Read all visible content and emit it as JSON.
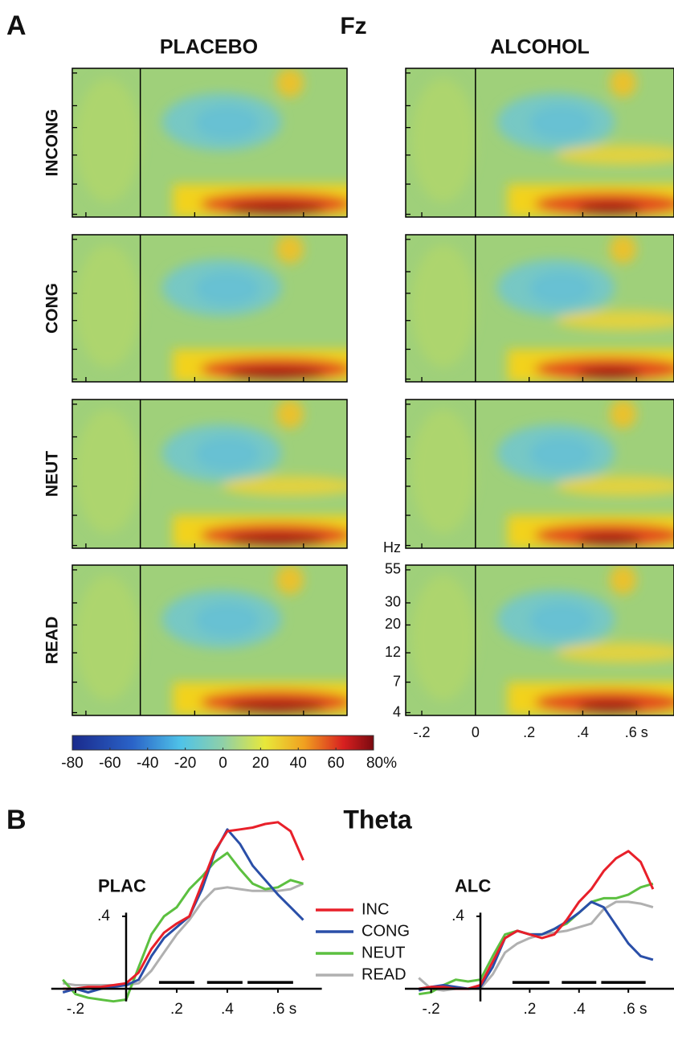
{
  "panel_a": {
    "label": "A",
    "title": "Fz",
    "columns": [
      "PLACEBO",
      "ALCOHOL"
    ],
    "rows": [
      "INCONG",
      "CONG",
      "NEUT",
      "READ"
    ],
    "freq_unit": "Hz",
    "freq_ticks": [
      55,
      30,
      20,
      12,
      7,
      4
    ],
    "freq_lim": [
      3.8,
      60
    ],
    "log_freq": true,
    "time_ticks": [
      {
        "value": -0.2,
        "label": "-.2"
      },
      0,
      {
        "value": 0.2,
        "label": ".2"
      },
      {
        "value": 0.4,
        "label": ".4"
      },
      {
        "value": 0.6,
        "label": ".6 s"
      }
    ],
    "time_lims": [
      [
        -0.25,
        0.76
      ],
      [
        -0.26,
        0.74
      ]
    ],
    "colorbar": {
      "lim": [
        -80,
        80
      ],
      "ticks": [
        -80,
        -60,
        -40,
        -20,
        0,
        20,
        40,
        60,
        {
          "value": 80,
          "label": "80%"
        }
      ]
    }
  },
  "panel_b": {
    "label": "B",
    "title": "Theta"
  },
  "chart_data": [
    {
      "type": "line",
      "title": "PLAC",
      "x": [
        -0.25,
        -0.2,
        -0.15,
        -0.1,
        -0.05,
        0,
        0.05,
        0.1,
        0.15,
        0.2,
        0.25,
        0.3,
        0.35,
        0.4,
        0.45,
        0.5,
        0.55,
        0.6,
        0.65,
        0.7
      ],
      "series": [
        {
          "name": "INC",
          "color": "#e8202a",
          "values": [
            0,
            0,
            0.01,
            0.01,
            0.02,
            0.03,
            0.09,
            0.22,
            0.31,
            0.36,
            0.4,
            0.58,
            0.76,
            0.87,
            0.88,
            0.89,
            0.91,
            0.92,
            0.87,
            0.71
          ]
        },
        {
          "name": "CONG",
          "color": "#2a4fa8",
          "values": [
            -0.02,
            0,
            -0.02,
            0,
            0.01,
            0.02,
            0.05,
            0.18,
            0.28,
            0.34,
            0.4,
            0.55,
            0.75,
            0.88,
            0.8,
            0.68,
            0.6,
            0.52,
            0.45,
            0.38
          ]
        },
        {
          "name": "NEUT",
          "color": "#5cc040",
          "values": [
            0.05,
            -0.03,
            -0.05,
            -0.06,
            -0.07,
            -0.06,
            0.12,
            0.3,
            0.4,
            0.45,
            0.55,
            0.62,
            0.7,
            0.75,
            0.66,
            0.58,
            0.55,
            0.56,
            0.6,
            0.58
          ]
        },
        {
          "name": "READ",
          "color": "#b0b0b0",
          "values": [
            0.03,
            0.02,
            0.02,
            0.02,
            0.02,
            0.02,
            0.03,
            0.1,
            0.2,
            0.3,
            0.38,
            0.48,
            0.55,
            0.56,
            0.55,
            0.54,
            0.54,
            0.54,
            0.55,
            0.58
          ]
        }
      ],
      "xlim": [
        -0.28,
        0.71
      ],
      "ylim": [
        -0.1,
        0.95
      ],
      "xticks": [
        {
          "value": -0.2,
          "label": "-.2"
        },
        {
          "value": 0.2,
          "label": ".2"
        },
        {
          "value": 0.4,
          "label": ".4"
        },
        {
          "value": 0.6,
          "label": ".6 s"
        }
      ],
      "yticks": [
        {
          "value": 0.4,
          "label": ".4"
        }
      ],
      "sig_bars": [
        [
          0.13,
          0.27
        ],
        [
          0.32,
          0.46
        ],
        [
          0.48,
          0.66
        ]
      ]
    },
    {
      "type": "line",
      "title": "ALC",
      "x": [
        -0.25,
        -0.2,
        -0.15,
        -0.1,
        -0.05,
        0,
        0.05,
        0.1,
        0.15,
        0.2,
        0.25,
        0.3,
        0.35,
        0.4,
        0.45,
        0.5,
        0.55,
        0.6,
        0.65,
        0.7
      ],
      "series": [
        {
          "color": "#e8202a",
          "values": [
            0,
            0.01,
            0.01,
            0,
            0,
            0.02,
            0.15,
            0.28,
            0.32,
            0.3,
            0.28,
            0.3,
            0.38,
            0.48,
            0.55,
            0.65,
            0.72,
            0.76,
            0.7,
            0.55
          ]
        },
        {
          "color": "#2a4fa8",
          "values": [
            -0.01,
            0.01,
            0.02,
            0.01,
            0,
            0.01,
            0.12,
            0.28,
            0.32,
            0.3,
            0.3,
            0.33,
            0.37,
            0.42,
            0.48,
            0.45,
            0.35,
            0.25,
            0.18,
            0.16
          ]
        },
        {
          "color": "#5cc040",
          "values": [
            -0.03,
            -0.02,
            0.02,
            0.05,
            0.04,
            0.05,
            0.18,
            0.3,
            0.32,
            0.3,
            0.3,
            0.33,
            0.36,
            0.42,
            0.48,
            0.5,
            0.5,
            0.52,
            0.56,
            0.58
          ]
        },
        {
          "color": "#b0b0b0",
          "values": [
            0.06,
            0,
            -0.01,
            0,
            0,
            0,
            0.08,
            0.2,
            0.25,
            0.28,
            0.3,
            0.31,
            0.32,
            0.34,
            0.36,
            0.44,
            0.48,
            0.48,
            0.47,
            0.45
          ]
        }
      ],
      "xlim": [
        -0.29,
        0.72
      ],
      "ylim": [
        -0.1,
        0.95
      ],
      "xticks": [
        {
          "value": -0.2,
          "label": "-.2"
        },
        {
          "value": 0.2,
          "label": ".2"
        },
        {
          "value": 0.4,
          "label": ".4"
        },
        {
          "value": 0.6,
          "label": ".6 s"
        }
      ],
      "yticks": [
        {
          "value": 0.4,
          "label": ".4"
        }
      ],
      "sig_bars": [
        [
          0.13,
          0.28
        ],
        [
          0.33,
          0.47
        ],
        [
          0.49,
          0.67
        ]
      ]
    }
  ]
}
